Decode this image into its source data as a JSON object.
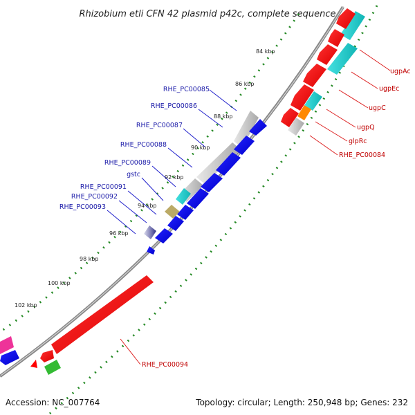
{
  "title": "Rhizobium etli CFN 42 plasmid p42c, complete sequence",
  "accession": "Accession: NC_007764",
  "summary": "Topology: circular; Length: 250,948 bp; Genes: 232",
  "ticks": {
    "t84": "84 kbp",
    "t86": "86 kbp",
    "t88": "88 kbp",
    "t90": "90 kbp",
    "t92": "92 kbp",
    "t94": "94 kbp",
    "t96": "96 kbp",
    "t98": "98 kbp",
    "t100": "100 kbp",
    "t102": "102 kbp"
  },
  "genes": {
    "g85": "RHE_PC00085",
    "g86": "RHE_PC00086",
    "g87": "RHE_PC00087",
    "g88": "RHE_PC00088",
    "g89": "RHE_PC00089",
    "gstc": "gstc",
    "g91": "RHE_PC00091",
    "g92": "RHE_PC00092",
    "g93": "RHE_PC00093",
    "ugpA": "ugpAc",
    "ugpE": "ugpEc",
    "ugpC": "ugpC",
    "ugpQ": "ugpQ",
    "glpR": "glpRc",
    "g84": "RHE_PC00084",
    "g94": "RHE_PC00094"
  },
  "colors": {
    "forward": "#ff0000",
    "reverse": "#0000ee",
    "cyan": "#22cccc",
    "grey": "#c8c8c8",
    "green": "#33bb33",
    "pink": "#ee3399",
    "tan": "#bbaa66",
    "orange": "#ff8800",
    "backbone": "#888888"
  }
}
